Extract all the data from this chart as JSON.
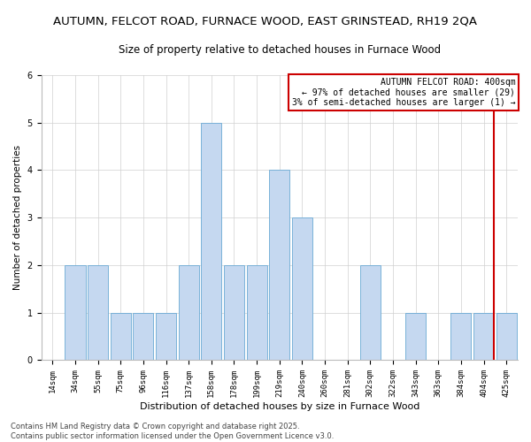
{
  "title": "AUTUMN, FELCOT ROAD, FURNACE WOOD, EAST GRINSTEAD, RH19 2QA",
  "subtitle": "Size of property relative to detached houses in Furnace Wood",
  "xlabel": "Distribution of detached houses by size in Furnace Wood",
  "ylabel": "Number of detached properties",
  "categories": [
    "14sqm",
    "34sqm",
    "55sqm",
    "75sqm",
    "96sqm",
    "116sqm",
    "137sqm",
    "158sqm",
    "178sqm",
    "199sqm",
    "219sqm",
    "240sqm",
    "260sqm",
    "281sqm",
    "302sqm",
    "322sqm",
    "343sqm",
    "363sqm",
    "384sqm",
    "404sqm",
    "425sqm"
  ],
  "values": [
    0,
    2,
    2,
    1,
    1,
    1,
    2,
    5,
    2,
    2,
    4,
    3,
    0,
    0,
    2,
    0,
    1,
    0,
    1,
    1,
    1
  ],
  "bar_color": "#c5d8f0",
  "bar_edge_color": "#6aaad4",
  "grid_color": "#d0d0d0",
  "vline_index": 19,
  "vline_color": "#cc0000",
  "legend_text_line1": "AUTUMN FELCOT ROAD: 400sqm",
  "legend_text_line2": "← 97% of detached houses are smaller (29)",
  "legend_text_line3": "3% of semi-detached houses are larger (1) →",
  "legend_box_color": "#cc0000",
  "footer_line1": "Contains HM Land Registry data © Crown copyright and database right 2025.",
  "footer_line2": "Contains public sector information licensed under the Open Government Licence v3.0.",
  "ylim": [
    0,
    6
  ],
  "yticks": [
    0,
    1,
    2,
    3,
    4,
    5,
    6
  ],
  "title_fontsize": 9.5,
  "subtitle_fontsize": 8.5,
  "xlabel_fontsize": 8,
  "ylabel_fontsize": 7.5,
  "tick_fontsize": 6.5,
  "footer_fontsize": 6,
  "legend_fontsize": 7
}
